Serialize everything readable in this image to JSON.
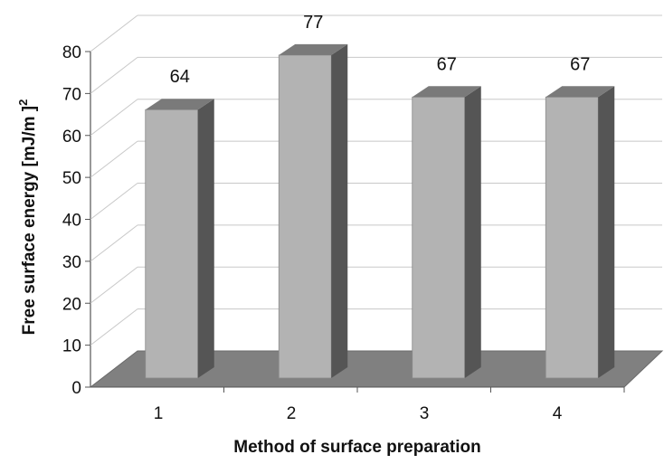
{
  "chart_data": {
    "type": "bar",
    "style": "3d-column",
    "categories": [
      "1",
      "2",
      "3",
      "4"
    ],
    "values": [
      64,
      77,
      67,
      67
    ],
    "data_labels": [
      "64",
      "77",
      "67",
      "67"
    ],
    "xlabel": "Method of surface preparation",
    "ylabel": "Free surface energy [mJ/m ]",
    "ylabel_superscript": "2",
    "ylim": [
      0,
      80
    ],
    "yticks": [
      0,
      10,
      20,
      30,
      40,
      50,
      60,
      70,
      80
    ],
    "grid": true,
    "legend": "none",
    "colors": {
      "bar_front": "#b3b3b3",
      "bar_side": "#555555",
      "bar_top": "#7a7a7a",
      "floor": "#808080",
      "grid": "#c8c8c8"
    }
  }
}
